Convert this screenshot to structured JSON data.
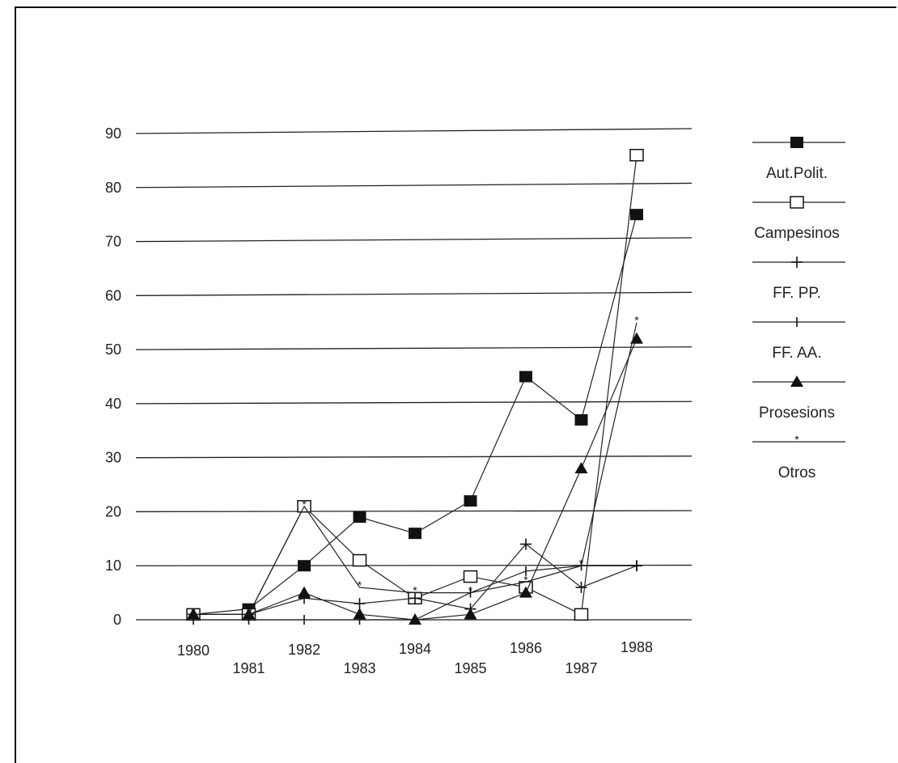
{
  "chart_data": {
    "type": "line",
    "title": "",
    "xlabel": "",
    "ylabel": "",
    "x": [
      "1980",
      "1981",
      "1982",
      "1983",
      "1984",
      "1985",
      "1986",
      "1987",
      "1988"
    ],
    "ylim": [
      0,
      90
    ],
    "yticks": [
      "0",
      "10",
      "20",
      "30",
      "40",
      "50",
      "60",
      "70",
      "80",
      "90"
    ],
    "grid": true,
    "legend_position": "right",
    "series": [
      {
        "name": "Aut.Polit.",
        "marker": "filled-square",
        "values": [
          1,
          2,
          10,
          19,
          16,
          22,
          45,
          37,
          75
        ]
      },
      {
        "name": "Campesinos",
        "marker": "open-square",
        "values": [
          1,
          1,
          21,
          11,
          4,
          8,
          6,
          1,
          86
        ]
      },
      {
        "name": "FF. PP.",
        "marker": "plus",
        "values": [
          1,
          1,
          4,
          3,
          4,
          2,
          14,
          6,
          10
        ]
      },
      {
        "name": "FF. AA.",
        "marker": "tick",
        "values": [
          0,
          0,
          0,
          0,
          0,
          5,
          9,
          10,
          10
        ]
      },
      {
        "name": "Prosesions",
        "marker": "filled-triangle",
        "values": [
          1,
          1,
          5,
          1,
          0,
          1,
          5,
          28,
          52
        ]
      },
      {
        "name": "Otros",
        "marker": "asterisk",
        "values": [
          1,
          1,
          21,
          6,
          5,
          5,
          7,
          10,
          55
        ]
      }
    ]
  }
}
